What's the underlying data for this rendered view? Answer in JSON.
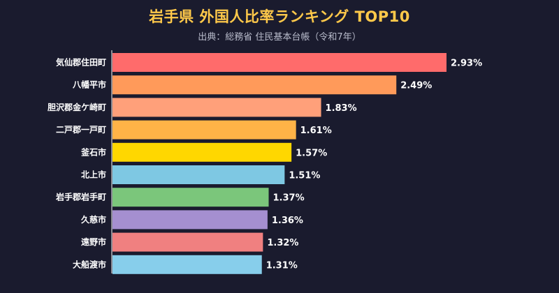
{
  "chart_data": {
    "type": "bar",
    "orientation": "horizontal",
    "title": "岩手県 外国人比率ランキング TOP10",
    "subtitle": "出典：総務省 住民基本台帳（令和7年）",
    "categories": [
      "気仙郡住田町",
      "八幡平市",
      "胆沢郡金ケ崎町",
      "二戸郡一戸町",
      "釜石市",
      "北上市",
      "岩手郡岩手町",
      "久慈市",
      "遠野市",
      "大船渡市"
    ],
    "values": [
      2.93,
      2.49,
      1.83,
      1.61,
      1.57,
      1.51,
      1.37,
      1.36,
      1.32,
      1.31
    ],
    "value_labels": [
      "2.93%",
      "2.49%",
      "1.83%",
      "1.61%",
      "1.57%",
      "1.51%",
      "1.37%",
      "1.36%",
      "1.32%",
      "1.31%"
    ],
    "colors": [
      "#ff6b6b",
      "#ff9a5a",
      "#ffa07a",
      "#ffb347",
      "#ffd700",
      "#7ec8e3",
      "#7bc67b",
      "#a58fd0",
      "#f08080",
      "#87ceeb"
    ],
    "xlim": [
      0,
      3.0
    ],
    "grid": false,
    "legend": "none"
  }
}
